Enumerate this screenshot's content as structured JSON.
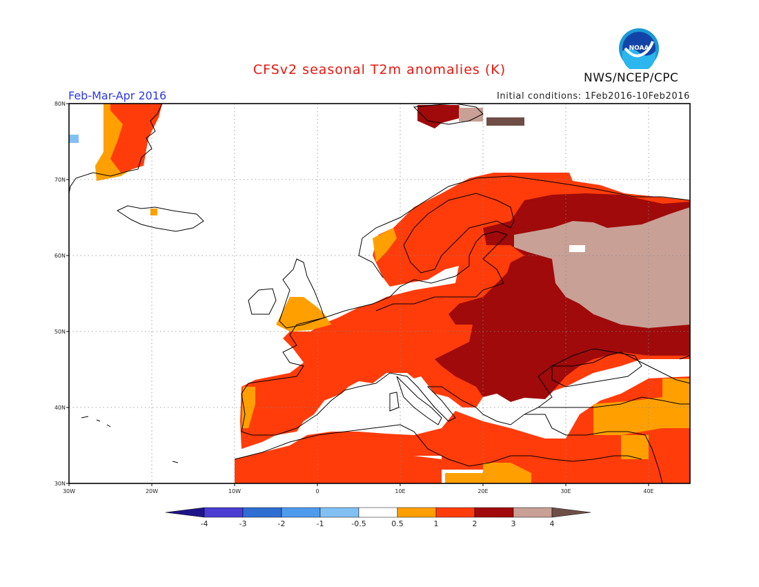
{
  "title": "CFSv2 seasonal T2m anomalies (K)",
  "agency": "NWS/NCEP/CPC",
  "logo_text": "NOAA",
  "period": "Feb-Mar-Apr 2016",
  "initial_conditions": "Initial conditions: 1Feb2016-10Feb2016",
  "axes": {
    "x_ticks": [
      "30W",
      "20W",
      "10W",
      "0",
      "10E",
      "20E",
      "30E",
      "40E"
    ],
    "y_ticks": [
      "80N",
      "70N",
      "60N",
      "50N",
      "40N",
      "30N"
    ]
  },
  "colorbar": {
    "labels": [
      "-4",
      "-3",
      "-2",
      "-1",
      "-0.5",
      "0.5",
      "1",
      "2",
      "3",
      "4"
    ],
    "colors": [
      "#1e1487",
      "#4b3cd2",
      "#2f6ed2",
      "#4e9bee",
      "#82c0f4",
      "#ffffff",
      "#ffa000",
      "#ff3c0a",
      "#a00a0a",
      "#c8a096",
      "#6e4e46"
    ]
  },
  "colors": {
    "ocean": "#ffffff",
    "coast": "#000000",
    "grid": "#888888"
  }
}
